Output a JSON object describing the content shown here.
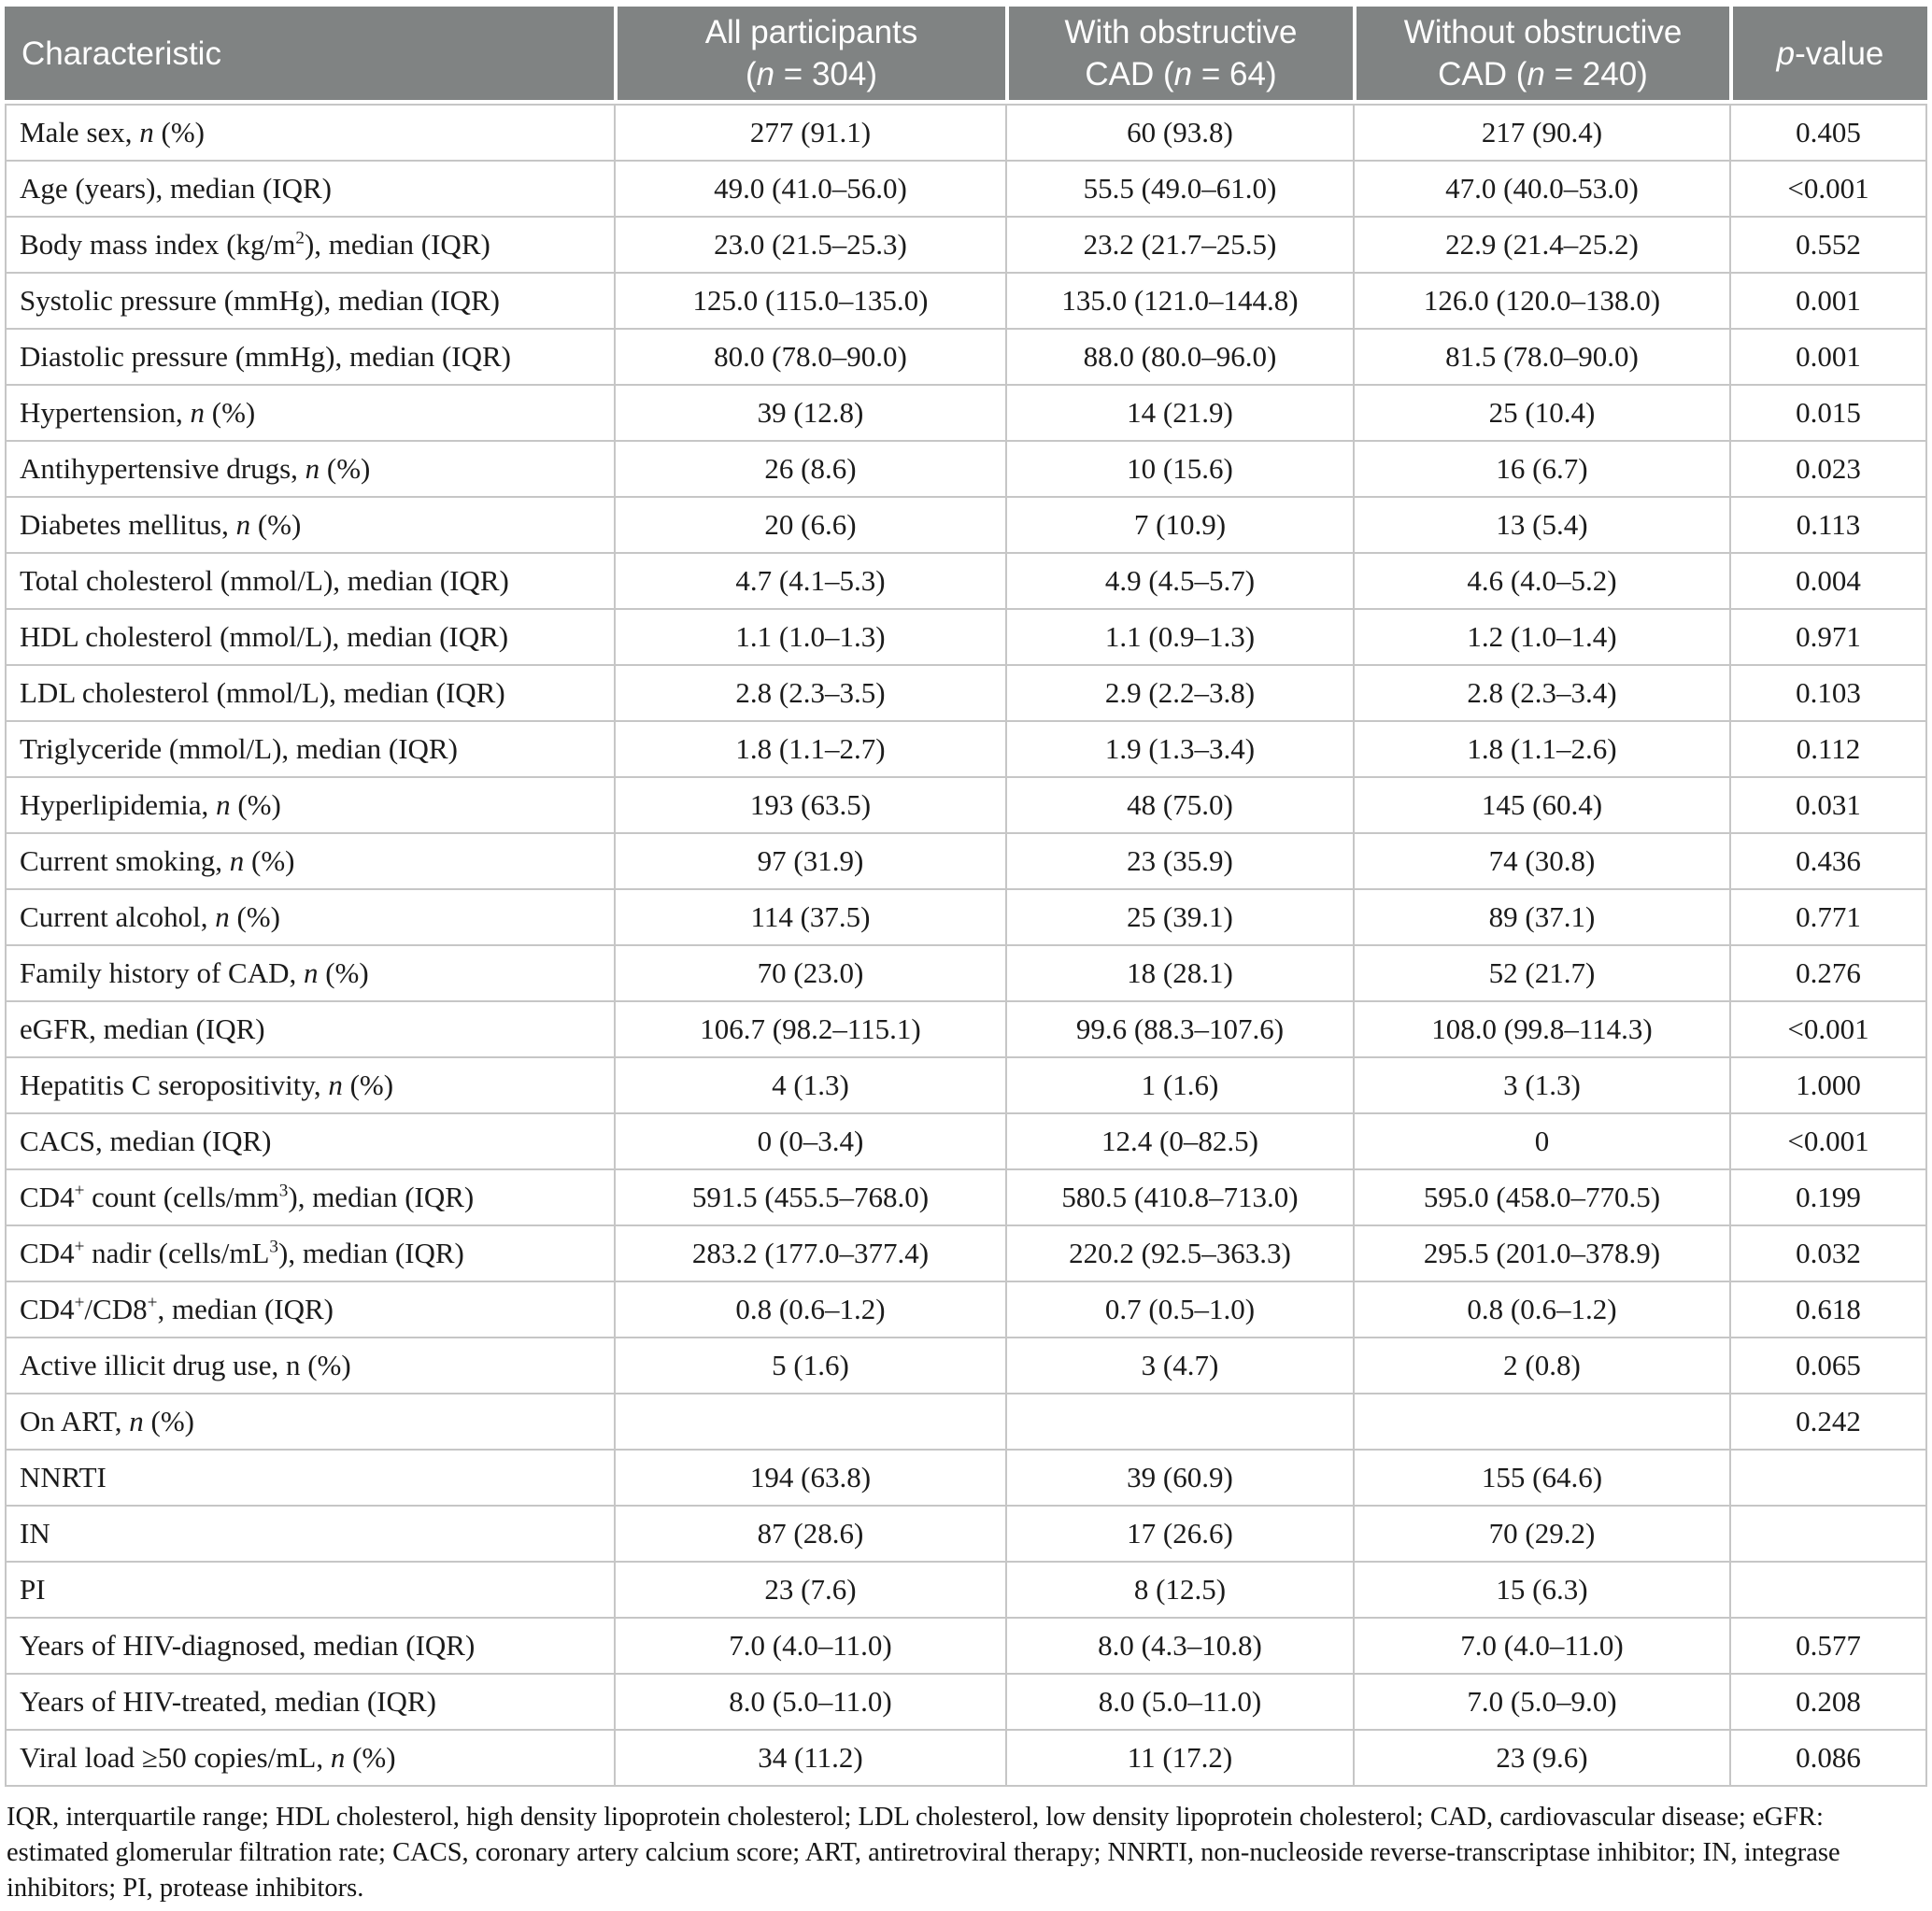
{
  "colors": {
    "header_bg": "#808383",
    "header_text": "#ffffff",
    "border": "#c6c6c6",
    "body_text": "#1b1b1b"
  },
  "table": {
    "header": {
      "columns": [
        {
          "label": "Characteristic"
        },
        {
          "label": "All participants\n(*n* = 304)"
        },
        {
          "label": "With obstructive\nCAD (*n* = 64)"
        },
        {
          "label": "Without obstructive\nCAD (*n* = 240)"
        },
        {
          "label": "*p*-value"
        }
      ]
    },
    "rows": [
      {
        "label": "Male sex, *n* (%)",
        "values": [
          "277 (91.1)",
          "60 (93.8)",
          "217 (90.4)",
          "0.405"
        ]
      },
      {
        "label": "Age (years), median (IQR)",
        "values": [
          "49.0 (41.0–56.0)",
          "55.5 (49.0–61.0)",
          "47.0 (40.0–53.0)",
          "<0.001"
        ]
      },
      {
        "label": "Body mass index (kg/m^{2}), median (IQR)",
        "values": [
          "23.0 (21.5–25.3)",
          "23.2 (21.7–25.5)",
          "22.9 (21.4–25.2)",
          "0.552"
        ]
      },
      {
        "label": "Systolic pressure (mmHg), median (IQR)",
        "values": [
          "125.0 (115.0–135.0)",
          "135.0 (121.0–144.8)",
          "126.0 (120.0–138.0)",
          "0.001"
        ]
      },
      {
        "label": "Diastolic pressure (mmHg), median (IQR)",
        "values": [
          "80.0 (78.0–90.0)",
          "88.0 (80.0–96.0)",
          "81.5 (78.0–90.0)",
          "0.001"
        ]
      },
      {
        "label": "Hypertension, *n* (%)",
        "values": [
          "39 (12.8)",
          "14 (21.9)",
          "25 (10.4)",
          "0.015"
        ]
      },
      {
        "label": "Antihypertensive drugs, *n* (%)",
        "values": [
          "26 (8.6)",
          "10 (15.6)",
          "16 (6.7)",
          "0.023"
        ]
      },
      {
        "label": "Diabetes mellitus, *n* (%)",
        "values": [
          "20 (6.6)",
          "7 (10.9)",
          "13 (5.4)",
          "0.113"
        ]
      },
      {
        "label": "Total cholesterol (mmol/L), median (IQR)",
        "values": [
          "4.7 (4.1–5.3)",
          "4.9 (4.5–5.7)",
          "4.6 (4.0–5.2)",
          "0.004"
        ]
      },
      {
        "label": "HDL cholesterol (mmol/L), median (IQR)",
        "values": [
          "1.1 (1.0–1.3)",
          "1.1 (0.9–1.3)",
          "1.2 (1.0–1.4)",
          "0.971"
        ]
      },
      {
        "label": "LDL cholesterol (mmol/L), median (IQR)",
        "values": [
          "2.8 (2.3–3.5)",
          "2.9 (2.2–3.8)",
          "2.8 (2.3–3.4)",
          "0.103"
        ]
      },
      {
        "label": "Triglyceride (mmol/L), median (IQR)",
        "values": [
          "1.8 (1.1–2.7)",
          "1.9 (1.3–3.4)",
          "1.8 (1.1–2.6)",
          "0.112"
        ]
      },
      {
        "label": "Hyperlipidemia, *n* (%)",
        "values": [
          "193 (63.5)",
          "48 (75.0)",
          "145 (60.4)",
          "0.031"
        ]
      },
      {
        "label": "Current smoking, *n* (%)",
        "values": [
          "97 (31.9)",
          "23 (35.9)",
          "74 (30.8)",
          "0.436"
        ]
      },
      {
        "label": "Current alcohol, *n* (%)",
        "values": [
          "114 (37.5)",
          "25 (39.1)",
          "89 (37.1)",
          "0.771"
        ]
      },
      {
        "label": "Family history of CAD, *n* (%)",
        "values": [
          "70 (23.0)",
          "18 (28.1)",
          "52 (21.7)",
          "0.276"
        ]
      },
      {
        "label": "eGFR, median (IQR)",
        "values": [
          "106.7 (98.2–115.1)",
          "99.6 (88.3–107.6)",
          "108.0 (99.8–114.3)",
          "<0.001"
        ]
      },
      {
        "label": "Hepatitis C seropositivity, *n* (%)",
        "values": [
          "4 (1.3)",
          "1 (1.6)",
          "3 (1.3)",
          "1.000"
        ]
      },
      {
        "label": "CACS, median (IQR)",
        "values": [
          "0 (0–3.4)",
          "12.4 (0–82.5)",
          "0",
          "<0.001"
        ]
      },
      {
        "label": "CD4^{+} count (cells/mm^{3}), median (IQR)",
        "values": [
          "591.5 (455.5–768.0)",
          "580.5 (410.8–713.0)",
          "595.0 (458.0–770.5)",
          "0.199"
        ]
      },
      {
        "label": "CD4^{+} nadir (cells/mL^{3}), median (IQR)",
        "values": [
          "283.2 (177.0–377.4)",
          "220.2 (92.5–363.3)",
          "295.5 (201.0–378.9)",
          "0.032"
        ]
      },
      {
        "label": "CD4^{+}/CD8^{+}, median (IQR)",
        "values": [
          "0.8 (0.6–1.2)",
          "0.7 (0.5–1.0)",
          "0.8 (0.6–1.2)",
          "0.618"
        ]
      },
      {
        "label": "Active illicit drug use, n (%)",
        "values": [
          "5 (1.6)",
          "3 (4.7)",
          "2 (0.8)",
          "0.065"
        ]
      },
      {
        "label": "On ART, *n* (%)",
        "values": [
          "",
          "",
          "",
          "0.242"
        ]
      },
      {
        "label": "NNRTI",
        "values": [
          "194 (63.8)",
          "39 (60.9)",
          "155 (64.6)",
          ""
        ]
      },
      {
        "label": "IN",
        "values": [
          "87 (28.6)",
          "17 (26.6)",
          "70 (29.2)",
          ""
        ]
      },
      {
        "label": "PI",
        "values": [
          "23 (7.6)",
          "8 (12.5)",
          "15 (6.3)",
          ""
        ]
      },
      {
        "label": "Years of HIV-diagnosed, median (IQR)",
        "values": [
          "7.0 (4.0–11.0)",
          "8.0 (4.3–10.8)",
          "7.0 (4.0–11.0)",
          "0.577"
        ]
      },
      {
        "label": "Years of HIV-treated, median (IQR)",
        "values": [
          "8.0 (5.0–11.0)",
          "8.0 (5.0–11.0)",
          "7.0 (5.0–9.0)",
          "0.208"
        ]
      },
      {
        "label": "Viral load ≥50 copies/mL, *n* (%)",
        "values": [
          "34 (11.2)",
          "11 (17.2)",
          "23 (9.6)",
          "0.086"
        ]
      }
    ],
    "footnote": "IQR, interquartile range; HDL cholesterol, high density lipoprotein cholesterol; LDL cholesterol, low density lipoprotein cholesterol; CAD, cardiovascular disease; eGFR: estimated glomerular filtration rate; CACS, coronary artery calcium score; ART, antiretroviral therapy; NNRTI, non-nucleoside reverse-transcriptase inhibitor; IN, integrase inhibitors; PI, protease inhibitors."
  }
}
